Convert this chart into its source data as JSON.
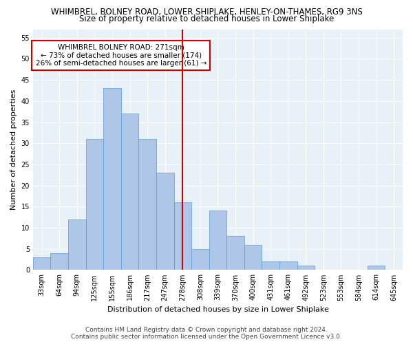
{
  "title": "WHIMBREL, BOLNEY ROAD, LOWER SHIPLAKE, HENLEY-ON-THAMES, RG9 3NS",
  "subtitle": "Size of property relative to detached houses in Lower Shiplake",
  "xlabel": "Distribution of detached houses by size in Lower Shiplake",
  "ylabel": "Number of detached properties",
  "categories": [
    "33sqm",
    "64sqm",
    "94sqm",
    "125sqm",
    "155sqm",
    "186sqm",
    "217sqm",
    "247sqm",
    "278sqm",
    "308sqm",
    "339sqm",
    "370sqm",
    "400sqm",
    "431sqm",
    "461sqm",
    "492sqm",
    "523sqm",
    "553sqm",
    "584sqm",
    "614sqm",
    "645sqm"
  ],
  "values": [
    3,
    4,
    12,
    31,
    43,
    37,
    31,
    23,
    16,
    5,
    14,
    8,
    6,
    2,
    2,
    1,
    0,
    0,
    0,
    1,
    0
  ],
  "bar_color": "#aec6e8",
  "bar_edgecolor": "#5a9ad4",
  "reference_label": "WHIMBREL BOLNEY ROAD: 271sqm",
  "annotation_line1": "← 73% of detached houses are smaller (174)",
  "annotation_line2": "26% of semi-detached houses are larger (61) →",
  "vline_color": "#cc0000",
  "annotation_box_edgecolor": "#cc0000",
  "ylim": [
    0,
    57
  ],
  "yticks": [
    0,
    5,
    10,
    15,
    20,
    25,
    30,
    35,
    40,
    45,
    50,
    55
  ],
  "footer_line1": "Contains HM Land Registry data © Crown copyright and database right 2024.",
  "footer_line2": "Contains public sector information licensed under the Open Government Licence v3.0.",
  "bg_color": "#e8f0f8",
  "fig_bg_color": "#ffffff",
  "title_fontsize": 8.5,
  "subtitle_fontsize": 8.5,
  "axis_label_fontsize": 8,
  "tick_fontsize": 7,
  "footer_fontsize": 6.5,
  "annot_fontsize": 7.5
}
